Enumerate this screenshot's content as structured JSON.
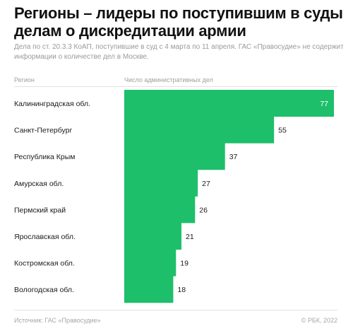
{
  "header": {
    "title": "Регионы – лидеры по поступившим в суды делам о дискредитации армии",
    "subtitle": "Дела по ст. 20.3.3 КоАП, поступившие в суд с 4 марта по 11 апреля. ГАС «Правосудие» не содержит информации о количестве дел в Москве."
  },
  "columns": {
    "region": "Регион",
    "count": "Число административных дел"
  },
  "footer": {
    "source": "Источник: ГАС «Правосудие»",
    "copyright": "© РБК, 2022"
  },
  "colors": {
    "bar": "#1dbf6b",
    "divider": "#e2e2e2"
  },
  "chart_data": {
    "type": "bar",
    "orientation": "horizontal",
    "categories": [
      "Калининградская обл.",
      "Санкт-Петербург",
      "Республика Крым",
      "Амурская обл.",
      "Пермский край",
      "Ярославская обл.",
      "Костромская обл.",
      "Вологодская обл."
    ],
    "values": [
      77,
      55,
      37,
      27,
      26,
      21,
      19,
      18
    ],
    "xlim": [
      0,
      77
    ],
    "grid": false,
    "legend": "none"
  }
}
